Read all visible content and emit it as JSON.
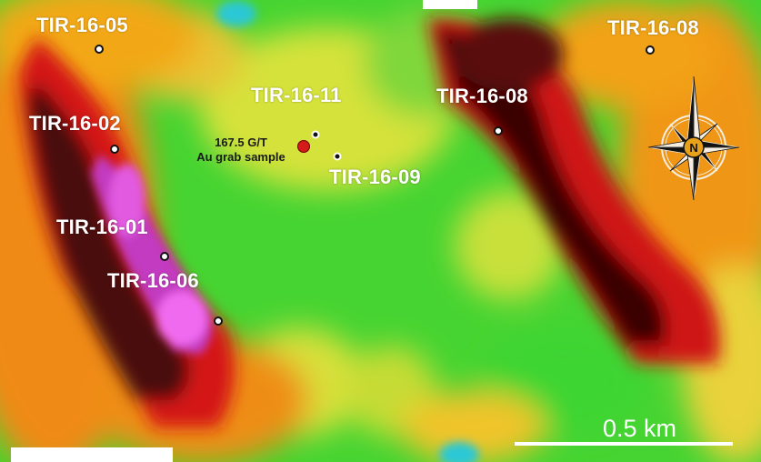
{
  "map": {
    "drillholes": [
      {
        "id": "tir-16-05",
        "label": "TIR-16-05"
      },
      {
        "id": "tir-16-08-east",
        "label": "TIR-16-08"
      },
      {
        "id": "tir-16-11",
        "label": "TIR-16-11"
      },
      {
        "id": "tir-16-08-central",
        "label": "TIR-16-08"
      },
      {
        "id": "tir-16-02",
        "label": "TIR-16-02"
      },
      {
        "id": "tir-16-09",
        "label": "TIR-16-09"
      },
      {
        "id": "tir-16-01",
        "label": "TIR-16-01"
      },
      {
        "id": "tir-16-06",
        "label": "TIR-16-06"
      }
    ],
    "sample": {
      "line1": "167.5 G/T",
      "line2": "Au grab sample",
      "color": "#d51a1a"
    },
    "scale": {
      "label": "0.5 km"
    },
    "compass": {
      "north_letter": "N",
      "icon": "compass-rose-icon"
    },
    "colors": {
      "high": "#ff3df0",
      "dark": "#3a0606",
      "red": "#e01010",
      "orange": "#f59a10",
      "yellow": "#e9e23a",
      "green": "#3fd331",
      "cyan": "#1fc9d4"
    }
  }
}
